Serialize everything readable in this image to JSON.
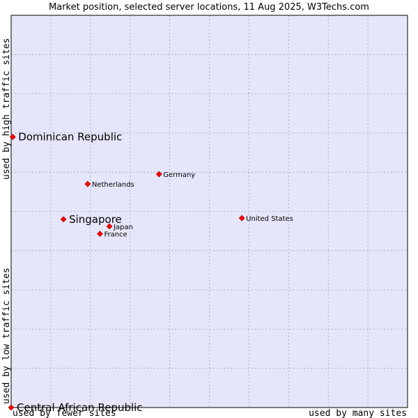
{
  "chart_data": {
    "type": "scatter",
    "title": "Market position, selected server locations, 11 Aug 2025, W3Techs.com",
    "xlabel_left": "used by fewer sites",
    "xlabel_right": "used by many sites",
    "ylabel_bottom": "used by low traffic sites",
    "ylabel_top": "used by high traffic sites",
    "grid": true,
    "xlim": [
      0,
      10
    ],
    "ylim": [
      0,
      10
    ],
    "colors": {
      "plot_bg": "#e6e6fa",
      "grid": "#a0a0b0",
      "marker": "#ff0000"
    },
    "points": [
      {
        "label": "Dominican Republic",
        "x": 0.04,
        "y": 6.9,
        "size": "large",
        "label_side": "right"
      },
      {
        "label": "Germany",
        "x": 3.73,
        "y": 5.95,
        "size": "small",
        "label_side": "right"
      },
      {
        "label": "Netherlands",
        "x": 1.93,
        "y": 5.7,
        "size": "small",
        "label_side": "right"
      },
      {
        "label": "Singapore",
        "x": 1.32,
        "y": 4.8,
        "size": "large",
        "label_side": "right"
      },
      {
        "label": "Japan",
        "x": 2.48,
        "y": 4.62,
        "size": "small",
        "label_side": "right"
      },
      {
        "label": "France",
        "x": 2.24,
        "y": 4.43,
        "size": "small",
        "label_side": "right"
      },
      {
        "label": "United States",
        "x": 5.82,
        "y": 4.83,
        "size": "small",
        "label_side": "right"
      },
      {
        "label": "Central African Republic",
        "x": 0.0,
        "y": 0.0,
        "size": "large",
        "label_side": "right"
      }
    ]
  }
}
